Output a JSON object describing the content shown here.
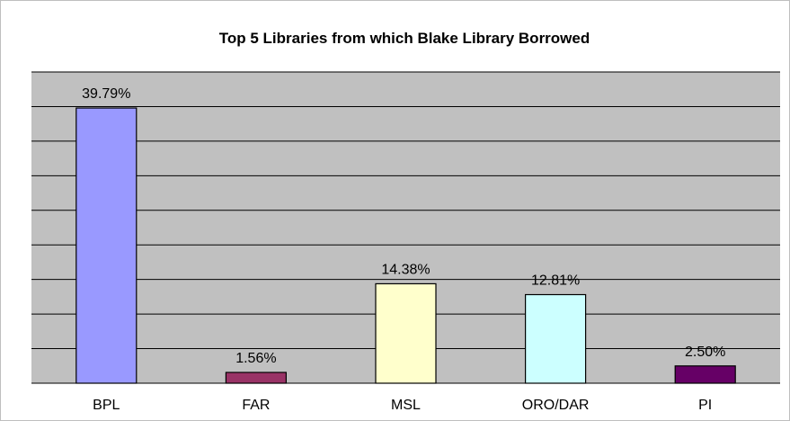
{
  "chart_data": {
    "type": "bar",
    "title": "Top 5 Libraries from which Blake Library Borrowed",
    "categories": [
      "BPL",
      "FAR",
      "MSL",
      "ORO/DAR",
      "PI"
    ],
    "values": [
      39.79,
      1.56,
      14.38,
      12.81,
      2.5
    ],
    "value_labels": [
      "39.79%",
      "1.56%",
      "14.38%",
      "12.81%",
      "2.50%"
    ],
    "bar_colors": [
      "#9999ff",
      "#993366",
      "#ffffcc",
      "#ccffff",
      "#660066"
    ],
    "ylim": [
      0,
      45
    ],
    "ytick_step": 5,
    "grid": true,
    "plot_background": "#c0c0c0",
    "xlabel": "",
    "ylabel": ""
  }
}
